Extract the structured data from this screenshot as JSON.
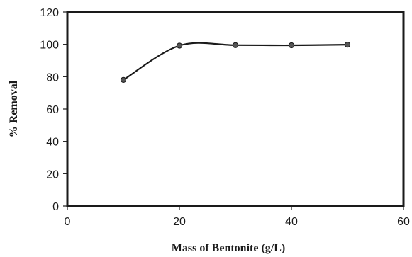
{
  "chart_data": {
    "type": "line",
    "title": "",
    "xlabel": "Mass of Bentonite (g/L)",
    "ylabel": "% Removal",
    "xlim": [
      0,
      60
    ],
    "ylim": [
      0,
      120
    ],
    "x_ticks": [
      0,
      20,
      40,
      60
    ],
    "y_ticks": [
      0,
      20,
      40,
      60,
      80,
      100,
      120
    ],
    "x_tick_labels": [
      "0",
      "20",
      "40",
      "60"
    ],
    "y_tick_labels": [
      "0",
      "20",
      "40",
      "60",
      "80",
      "100",
      "120"
    ],
    "grid": false,
    "legend": "none",
    "smooth": true,
    "series": [
      {
        "x": [
          10,
          20,
          30,
          40,
          50
        ],
        "y": [
          78,
          99.2,
          99.5,
          99.4,
          99.8
        ]
      }
    ],
    "line_color": "#1a1a1a",
    "marker_color": "#555555"
  }
}
